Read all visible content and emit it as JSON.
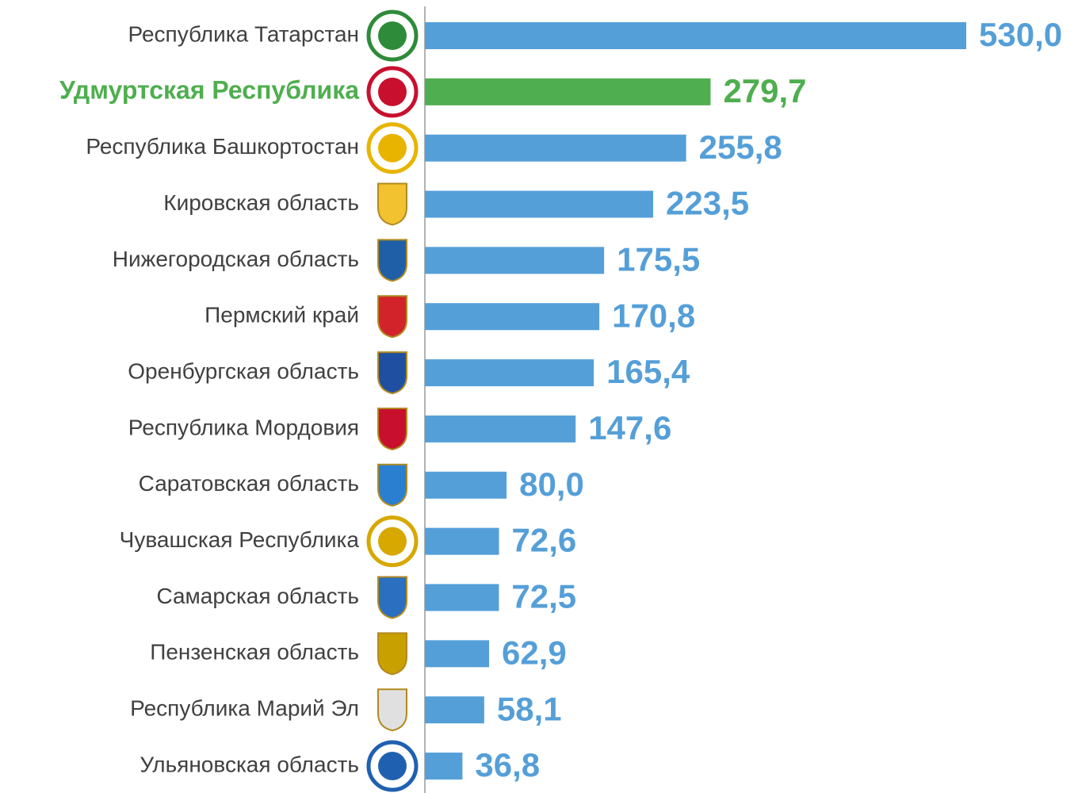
{
  "chart_data": {
    "type": "bar",
    "orientation": "horizontal",
    "categories": [
      "Республика Татарстан",
      "Удмуртская Республика",
      "Республика Башкортостан",
      "Кировская область",
      "Нижегородская область",
      "Пермский край",
      "Оренбургская область",
      "Республика Мордовия",
      "Саратовская область",
      "Чувашская Республика",
      "Самарская область",
      "Пензенская область",
      "Республика Марий Эл",
      "Ульяновская область"
    ],
    "values": [
      530.0,
      279.7,
      255.8,
      223.5,
      175.5,
      170.8,
      165.4,
      147.6,
      80.0,
      72.6,
      72.5,
      62.9,
      58.1,
      36.8
    ],
    "value_labels": [
      "530,0",
      "279,7",
      "255,8",
      "223,5",
      "175,5",
      "170,8",
      "165,4",
      "147,6",
      "80,0",
      "72,6",
      "72,5",
      "62,9",
      "58,1",
      "36,8"
    ],
    "color": "#559fd8",
    "colors": [
      "#559fd8",
      "#4fae4f",
      "#559fd8",
      "#559fd8",
      "#559fd8",
      "#559fd8",
      "#559fd8",
      "#559fd8",
      "#559fd8",
      "#559fd8",
      "#559fd8",
      "#559fd8",
      "#559fd8",
      "#559fd8"
    ]
  }
}
